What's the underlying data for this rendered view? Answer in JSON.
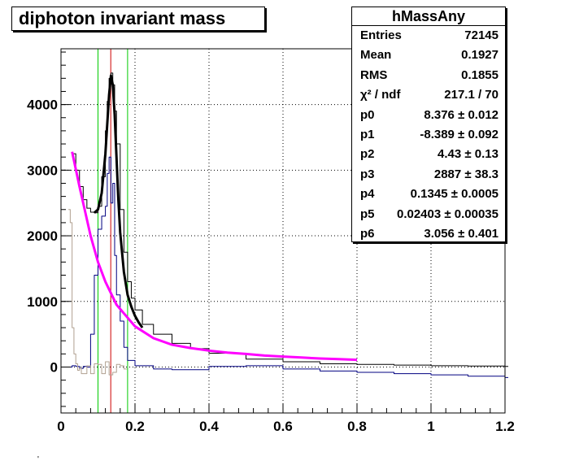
{
  "title": "diphoton invariant mass",
  "stats": {
    "name": "hMassAny",
    "rows": [
      {
        "key": "Entries",
        "value": "72145"
      },
      {
        "key": "Mean",
        "value": "0.1927"
      },
      {
        "key": "RMS",
        "value": "0.1855"
      },
      {
        "key": "χ² / ndf",
        "value": "217.1 / 70"
      },
      {
        "key": "p0",
        "value": "8.376 ± 0.012"
      },
      {
        "key": "p1",
        "value": "-8.389 ± 0.092"
      },
      {
        "key": "p2",
        "value": "4.43 ± 0.13"
      },
      {
        "key": "p3",
        "value": "2887 ± 38.3"
      },
      {
        "key": "p4",
        "value": "0.1345 ± 0.0005"
      },
      {
        "key": "p5",
        "value": "0.02403 ± 0.00035"
      },
      {
        "key": "p6",
        "value": "3.056 ± 0.401"
      }
    ]
  },
  "stray_mark": "'",
  "chart_data": {
    "type": "line",
    "title": "diphoton invariant mass",
    "xlim": [
      0,
      1.2
    ],
    "ylim": [
      -700,
      4850
    ],
    "grid": true,
    "x_ticks": [
      "0",
      "0.2",
      "0.4",
      "0.6",
      "0.8",
      "1",
      "1.2"
    ],
    "y_ticks": [
      "0",
      "1000",
      "2000",
      "3000",
      "4000"
    ],
    "x_tick_values": [
      0,
      0.2,
      0.4,
      0.6,
      0.8,
      1,
      1.2
    ],
    "y_tick_values": [
      0,
      1000,
      2000,
      3000,
      4000
    ],
    "vertical_lines": [
      {
        "x": 0.1,
        "color": "#00cc00"
      },
      {
        "x": 0.18,
        "color": "#00cc00"
      },
      {
        "x": 0.1345,
        "color": "#cc0000"
      }
    ],
    "series": [
      {
        "color": "#000000",
        "kind": "step",
        "x": [
          0.03,
          0.04,
          0.05,
          0.06,
          0.07,
          0.08,
          0.09,
          0.1,
          0.11,
          0.12,
          0.125,
          0.13,
          0.135,
          0.14,
          0.145,
          0.15,
          0.16,
          0.17,
          0.18,
          0.19,
          0.2,
          0.22,
          0.25,
          0.3,
          0.35,
          0.4,
          0.5,
          0.6,
          0.7,
          0.8,
          0.9,
          1.0,
          1.1,
          1.2
        ],
        "values": [
          3250,
          3000,
          2750,
          2550,
          2420,
          2360,
          2350,
          2450,
          2900,
          3600,
          4050,
          4400,
          4480,
          4300,
          3900,
          3400,
          2400,
          1750,
          1300,
          1050,
          870,
          650,
          500,
          360,
          280,
          210,
          120,
          80,
          50,
          40,
          30,
          20,
          15,
          10
        ]
      },
      {
        "color": "#000080",
        "kind": "step",
        "x": [
          0.0,
          0.02,
          0.03,
          0.04,
          0.05,
          0.06,
          0.07,
          0.08,
          0.09,
          0.1,
          0.11,
          0.12,
          0.125,
          0.13,
          0.135,
          0.14,
          0.145,
          0.15,
          0.16,
          0.17,
          0.18,
          0.2,
          0.25,
          0.3,
          0.4,
          0.5,
          0.6,
          0.7,
          0.8,
          0.9,
          1.0,
          1.1,
          1.2
        ],
        "values": [
          0,
          0,
          20,
          10,
          -20,
          10,
          0,
          500,
          1400,
          2100,
          2300,
          2450,
          2950,
          3200,
          2500,
          2800,
          1700,
          1100,
          700,
          300,
          100,
          20,
          -30,
          -40,
          10,
          20,
          -30,
          -60,
          -80,
          -100,
          -120,
          -140,
          -160
        ]
      },
      {
        "color": "#b0a090",
        "kind": "step",
        "x": [
          0.02,
          0.025,
          0.03,
          0.035,
          0.04,
          0.045,
          0.05,
          0.055,
          0.06,
          0.07,
          0.08,
          0.09,
          0.1,
          0.11,
          0.12,
          0.13,
          0.14,
          0.15,
          0.16,
          0.17
        ],
        "values": [
          2400,
          2200,
          600,
          200,
          50,
          -50,
          -20,
          -100,
          -100,
          20,
          -100,
          50,
          40,
          -100,
          80,
          -120,
          -80,
          40,
          20,
          -30
        ]
      },
      {
        "color": "#ff00ff",
        "kind": "smooth",
        "x": [
          0.03,
          0.05,
          0.08,
          0.1,
          0.12,
          0.15,
          0.2,
          0.25,
          0.3,
          0.35,
          0.4,
          0.45,
          0.5,
          0.55,
          0.6,
          0.65,
          0.7,
          0.75,
          0.8
        ],
        "values": [
          3280,
          2750,
          2000,
          1600,
          1300,
          950,
          620,
          440,
          340,
          290,
          250,
          220,
          200,
          175,
          160,
          145,
          130,
          120,
          110
        ]
      },
      {
        "color": "#000000",
        "kind": "smooth",
        "width": 3,
        "x": [
          0.09,
          0.1,
          0.11,
          0.12,
          0.125,
          0.13,
          0.135,
          0.14,
          0.145,
          0.15,
          0.155,
          0.16,
          0.17,
          0.18,
          0.19,
          0.2,
          0.21,
          0.22
        ],
        "values": [
          2350,
          2400,
          2650,
          3250,
          3700,
          4150,
          4440,
          4300,
          3850,
          3200,
          2550,
          2050,
          1450,
          1100,
          920,
          780,
          680,
          600
        ]
      }
    ]
  }
}
